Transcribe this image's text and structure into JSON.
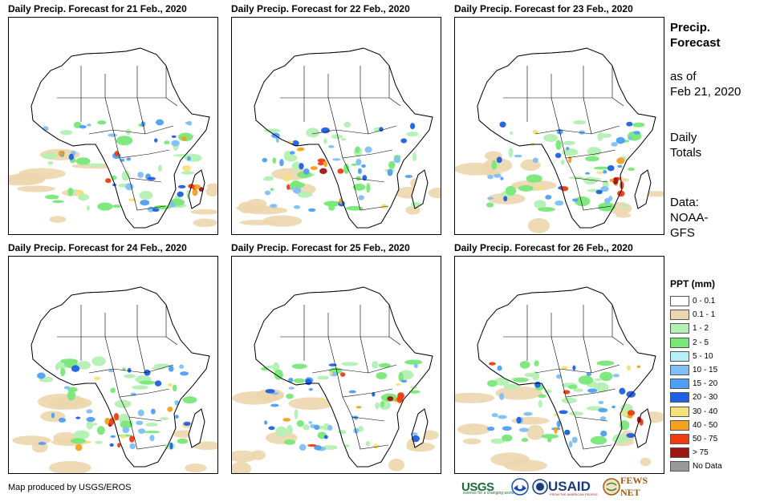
{
  "panels": [
    {
      "title": "Daily Precip. Forecast for 21 Feb., 2020",
      "variant": 0
    },
    {
      "title": "Daily Precip. Forecast for 22 Feb., 2020",
      "variant": 1
    },
    {
      "title": "Daily Precip. Forecast for 23 Feb., 2020",
      "variant": 2
    },
    {
      "title": "Daily Precip. Forecast for 24 Feb., 2020",
      "variant": 3
    },
    {
      "title": "Daily Precip. Forecast for 25 Feb., 2020",
      "variant": 4
    },
    {
      "title": "Daily Precip. Forecast for 26 Feb., 2020",
      "variant": 5
    }
  ],
  "sidebar": {
    "title_line1": "Precip.",
    "title_line2": "Forecast",
    "asof_line1": "as of",
    "asof_line2": "Feb 21, 2020",
    "totals_line1": "Daily",
    "totals_line2": "Totals",
    "data_line1": "Data:",
    "data_line2": "NOAA-",
    "data_line3": "GFS"
  },
  "legend": {
    "title": "PPT (mm)",
    "items": [
      {
        "label": "0 - 0.1",
        "color": "#ffffff"
      },
      {
        "label": "0.1 - 1",
        "color": "#ecd6ad"
      },
      {
        "label": "1 - 2",
        "color": "#b4f0b4"
      },
      {
        "label": "2 - 5",
        "color": "#78e878"
      },
      {
        "label": "5 - 10",
        "color": "#b4f0f5"
      },
      {
        "label": "10 - 15",
        "color": "#7fbff5"
      },
      {
        "label": "15 - 20",
        "color": "#4f9ef5"
      },
      {
        "label": "20 - 30",
        "color": "#1f5fe6"
      },
      {
        "label": "30 - 40",
        "color": "#f7e27a"
      },
      {
        "label": "40 - 50",
        "color": "#f5a020"
      },
      {
        "label": "50 - 75",
        "color": "#f03c10"
      },
      {
        "label": "> 75",
        "color": "#a01414"
      },
      {
        "label": "No Data",
        "color": "#999999"
      }
    ]
  },
  "footer": {
    "credit": "Map produced by USGS/EROS"
  },
  "logos": {
    "usgs": "USGS",
    "usgs_tagline": "science for a changing world",
    "usaid": "USAID",
    "usaid_tagline": "FROM THE AMERICAN PEOPLE",
    "fews": "FEWS NET"
  }
}
